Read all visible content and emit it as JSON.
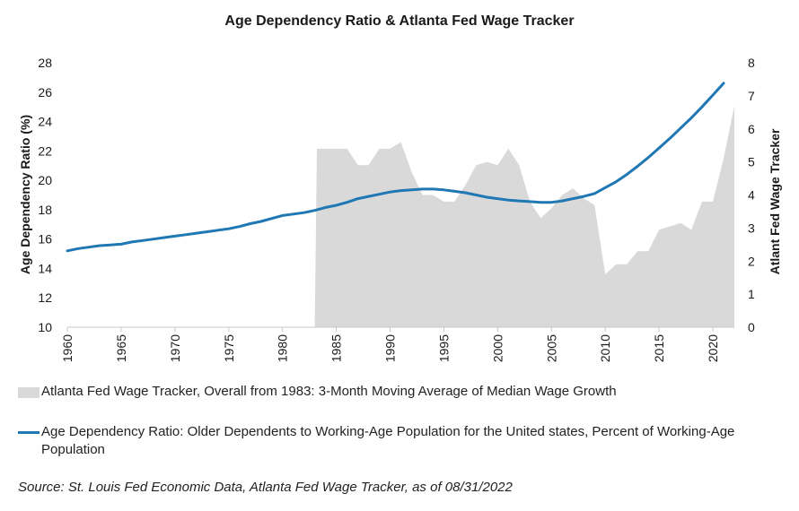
{
  "chart_data": {
    "type": "line",
    "title": "Age Dependency Ratio & Atlanta Fed Wage Tracker",
    "ylabel": "Age Dependency Ratio (%)",
    "y2label": "Atlant Fed Wage Tracker",
    "ylim": [
      10,
      28
    ],
    "y2lim": [
      0,
      8
    ],
    "xlim": [
      1960,
      2022
    ],
    "xticks": [
      1960,
      1965,
      1970,
      1975,
      1980,
      1985,
      1990,
      1995,
      2000,
      2005,
      2010,
      2015,
      2020
    ],
    "yticks": [
      10,
      12,
      14,
      16,
      18,
      20,
      22,
      24,
      26,
      28
    ],
    "y2ticks": [
      0,
      1,
      2,
      3,
      4,
      5,
      6,
      7,
      8
    ],
    "grid": false,
    "legend_position": "bottom",
    "colors": {
      "line": "#1f77b4",
      "area": "#d9d9d9"
    },
    "series": [
      {
        "name": "Atlanta Fed Wage Tracker, Overall from 1983: 3-Month Moving Average of Median Wage Growth",
        "type": "area",
        "axis": "right",
        "x": [
          1983,
          1983.2,
          1984,
          1985,
          1986,
          1987,
          1988,
          1989,
          1990,
          1991,
          1992,
          1993,
          1994,
          1995,
          1996,
          1997,
          1998,
          1999,
          2000,
          2001,
          2002,
          2003,
          2004,
          2005,
          2006,
          2007,
          2008,
          2009,
          2010,
          2011,
          2012,
          2013,
          2014,
          2015,
          2016,
          2017,
          2018,
          2019,
          2020,
          2021,
          2022
        ],
        "values": [
          0,
          5.4,
          5.4,
          5.4,
          5.4,
          4.9,
          4.9,
          5.4,
          5.4,
          5.6,
          4.7,
          4.0,
          4.0,
          3.8,
          3.8,
          4.3,
          4.9,
          5.0,
          4.9,
          5.4,
          4.9,
          3.8,
          3.3,
          3.6,
          4.0,
          4.2,
          3.9,
          3.7,
          1.6,
          1.9,
          1.9,
          2.3,
          2.3,
          2.95,
          3.05,
          3.15,
          2.95,
          3.8,
          3.8,
          5.1,
          6.7
        ]
      },
      {
        "name": "Age Dependency Ratio: Older Dependents to Working-Age Population for the United states, Percent of Working-Age Population",
        "type": "line",
        "axis": "left",
        "x": [
          1960,
          1961,
          1962,
          1963,
          1964,
          1965,
          1966,
          1967,
          1968,
          1969,
          1970,
          1971,
          1972,
          1973,
          1974,
          1975,
          1976,
          1977,
          1978,
          1979,
          1980,
          1981,
          1982,
          1983,
          1984,
          1985,
          1986,
          1987,
          1988,
          1989,
          1990,
          1991,
          1992,
          1993,
          1994,
          1995,
          1996,
          1997,
          1998,
          1999,
          2000,
          2001,
          2002,
          2003,
          2004,
          2005,
          2006,
          2007,
          2008,
          2009,
          2010,
          2011,
          2012,
          2013,
          2014,
          2015,
          2016,
          2017,
          2018,
          2019,
          2020,
          2021
        ],
        "values": [
          15.2,
          15.35,
          15.45,
          15.55,
          15.6,
          15.65,
          15.8,
          15.9,
          16.0,
          16.1,
          16.2,
          16.3,
          16.4,
          16.5,
          16.6,
          16.7,
          16.85,
          17.05,
          17.2,
          17.4,
          17.6,
          17.7,
          17.8,
          17.95,
          18.15,
          18.3,
          18.5,
          18.75,
          18.9,
          19.05,
          19.2,
          19.3,
          19.35,
          19.4,
          19.4,
          19.35,
          19.25,
          19.15,
          19.0,
          18.85,
          18.75,
          18.65,
          18.6,
          18.55,
          18.5,
          18.5,
          18.6,
          18.75,
          18.9,
          19.1,
          19.5,
          19.9,
          20.4,
          20.95,
          21.55,
          22.2,
          22.85,
          23.55,
          24.25,
          25.0,
          25.8,
          26.6
        ]
      }
    ]
  },
  "source": "Source: St. Louis Fed Economic Data, Atlanta Fed Wage Tracker, as of 08/31/2022"
}
